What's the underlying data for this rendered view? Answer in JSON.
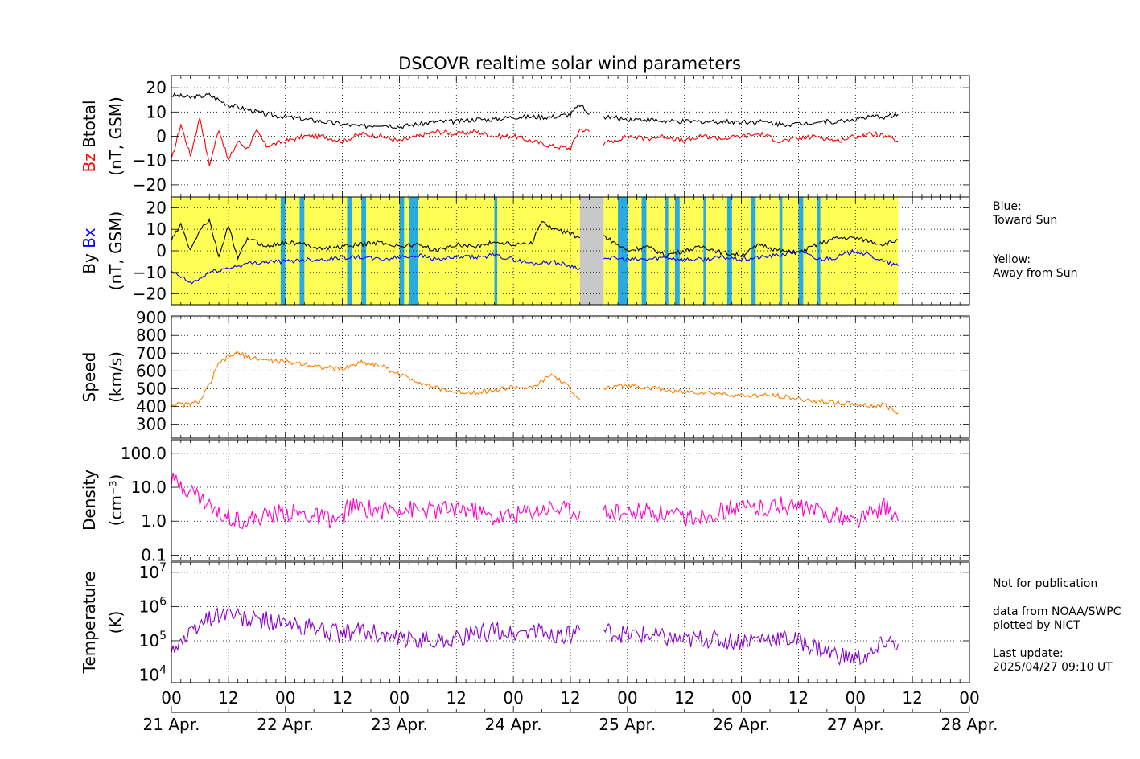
{
  "title": "DSCOVR realtime solar wind parameters",
  "colors": {
    "btotal": "#000000",
    "bz": "#ff0000",
    "by": "#000000",
    "bx": "#0000ff",
    "speed": "#ff8000",
    "density": "#ff00cc",
    "temperature": "#8800cc",
    "toward_sun": "#29abe2",
    "away_sun": "#ffff55",
    "gap": "#c8c8c8"
  },
  "legend": {
    "toward": [
      "Blue:",
      "Toward Sun"
    ],
    "away": [
      "Yellow:",
      "Away from Sun"
    ]
  },
  "notes": {
    "line1": "Not for publication",
    "line2": "data from NOAA/SWPC",
    "line3": "plotted by NICT",
    "line4": "Last update:",
    "line5": "2025/04/27 09:10 UT"
  },
  "chart_data": [
    {
      "type": "line",
      "panel": "magnetic",
      "ylabel_parts": [
        "Bz",
        "Btotal"
      ],
      "yunit": "(nT, GSM)",
      "ylim": [
        -25,
        25
      ],
      "yticks": [
        20,
        10,
        0,
        -10,
        -20
      ],
      "ytick_labels": [
        "20",
        "10",
        "0",
        "−10",
        "−20"
      ],
      "series": [
        {
          "name": "Btotal",
          "color_key": "btotal",
          "x": [
            0,
            4,
            8,
            12,
            16,
            20,
            24,
            28,
            32,
            36,
            40,
            44,
            48,
            52,
            56,
            60,
            64,
            68,
            72,
            76,
            80,
            84,
            86,
            88
          ],
          "y": [
            17,
            16,
            17,
            13,
            11,
            9,
            8,
            7,
            6,
            5,
            4,
            5,
            4,
            5,
            6,
            6,
            7,
            7,
            8,
            8,
            8,
            9,
            13,
            9
          ]
        },
        {
          "name": "Btotal",
          "color_key": "btotal",
          "x": [
            91,
            96,
            100,
            104,
            108,
            112,
            116,
            120,
            124,
            128,
            132,
            136,
            140,
            144,
            148,
            150,
            153
          ],
          "y": [
            8,
            7,
            7,
            6,
            6,
            6,
            6,
            6,
            6,
            5,
            5,
            6,
            6,
            7,
            8,
            8,
            9
          ]
        },
        {
          "name": "Bz",
          "color_key": "bz",
          "x": [
            0,
            2,
            4,
            6,
            8,
            10,
            12,
            14,
            16,
            18,
            20,
            24,
            28,
            32,
            36,
            40,
            44,
            48,
            52,
            56,
            60,
            64,
            68,
            72,
            76,
            80,
            84,
            86,
            88
          ],
          "y": [
            -10,
            5,
            -8,
            8,
            -12,
            3,
            -10,
            -2,
            -5,
            2,
            -4,
            -2,
            0,
            0,
            -2,
            1,
            0,
            -2,
            0,
            2,
            1,
            2,
            0,
            0,
            -2,
            -4,
            -5,
            3,
            2
          ]
        },
        {
          "name": "Bz",
          "color_key": "bz",
          "x": [
            91,
            96,
            100,
            104,
            108,
            112,
            116,
            120,
            124,
            128,
            132,
            136,
            140,
            144,
            148,
            150,
            153
          ],
          "y": [
            -3,
            0,
            -1,
            0,
            -2,
            0,
            -1,
            0,
            1,
            -2,
            -1,
            0,
            -2,
            0,
            1,
            0,
            -2
          ]
        }
      ]
    },
    {
      "type": "line",
      "panel": "imf",
      "ylabel_parts": [
        "By",
        "Bx"
      ],
      "yunit": "(nT, GSM)",
      "ylim": [
        -25,
        25
      ],
      "yticks": [
        20,
        10,
        0,
        -10,
        -20
      ],
      "ytick_labels": [
        "20",
        "10",
        "0",
        "−10",
        "−20"
      ],
      "sector_away": [
        [
          0,
          86
        ],
        [
          91,
          153
        ]
      ],
      "sector_toward": [
        [
          23,
          24
        ],
        [
          27,
          28
        ],
        [
          37,
          38
        ],
        [
          40,
          41
        ],
        [
          48,
          49
        ],
        [
          50,
          52
        ],
        [
          68,
          68.6
        ],
        [
          94,
          96
        ],
        [
          99,
          100
        ],
        [
          104,
          104.6
        ],
        [
          106,
          107
        ],
        [
          112,
          112.6
        ],
        [
          117,
          118
        ],
        [
          122,
          123
        ],
        [
          128,
          128.6
        ],
        [
          132,
          133
        ],
        [
          136,
          136.6
        ]
      ],
      "data_gap": [
        86,
        91
      ],
      "series": [
        {
          "name": "By",
          "color_key": "by",
          "x": [
            0,
            2,
            4,
            6,
            8,
            10,
            12,
            14,
            16,
            20,
            24,
            28,
            32,
            36,
            40,
            44,
            48,
            52,
            56,
            60,
            64,
            68,
            72,
            76,
            78,
            80,
            84,
            86
          ],
          "y": [
            5,
            12,
            0,
            10,
            14,
            -3,
            12,
            -4,
            6,
            2,
            4,
            3,
            1,
            2,
            3,
            4,
            2,
            3,
            0,
            3,
            2,
            4,
            3,
            4,
            14,
            10,
            8,
            6
          ]
        },
        {
          "name": "By",
          "color_key": "by",
          "x": [
            91,
            96,
            100,
            104,
            108,
            112,
            116,
            120,
            124,
            128,
            132,
            136,
            140,
            144,
            148,
            150,
            153
          ],
          "y": [
            7,
            0,
            2,
            -2,
            0,
            2,
            -1,
            -2,
            3,
            0,
            -1,
            3,
            6,
            6,
            4,
            3,
            5
          ]
        },
        {
          "name": "Bx",
          "color_key": "bx",
          "x": [
            0,
            2,
            4,
            6,
            8,
            12,
            16,
            20,
            24,
            28,
            32,
            36,
            40,
            44,
            48,
            52,
            56,
            60,
            64,
            68,
            72,
            76,
            80,
            84,
            86
          ],
          "y": [
            -10,
            -12,
            -15,
            -13,
            -10,
            -8,
            -6,
            -5,
            -5,
            -4,
            -4,
            -3,
            -3,
            -4,
            -3,
            -2,
            -4,
            -3,
            -3,
            -2,
            -4,
            -6,
            -5,
            -7,
            -8
          ]
        },
        {
          "name": "Bx",
          "color_key": "bx",
          "x": [
            91,
            96,
            100,
            104,
            108,
            112,
            116,
            120,
            124,
            128,
            132,
            136,
            140,
            144,
            148,
            150,
            153
          ],
          "y": [
            -3,
            -4,
            -4,
            -3,
            -4,
            -4,
            -3,
            -4,
            -3,
            -2,
            0,
            -4,
            -3,
            0,
            -3,
            -5,
            -7
          ]
        }
      ]
    },
    {
      "type": "line",
      "panel": "speed",
      "ylabel_parts": [
        "Speed"
      ],
      "yunit": "(km/s)",
      "ylim": [
        220,
        910
      ],
      "yticks": [
        900,
        800,
        700,
        600,
        500,
        400,
        300
      ],
      "ytick_labels": [
        "900",
        "800",
        "700",
        "600",
        "500",
        "400",
        "300"
      ],
      "series": [
        {
          "name": "Speed",
          "color_key": "speed",
          "x": [
            0,
            4,
            6,
            8,
            10,
            12,
            14,
            16,
            20,
            24,
            28,
            32,
            36,
            40,
            44,
            48,
            52,
            56,
            60,
            64,
            68,
            72,
            76,
            80,
            84,
            86
          ],
          "y": [
            410,
            410,
            430,
            520,
            640,
            680,
            700,
            680,
            660,
            650,
            640,
            620,
            610,
            650,
            630,
            580,
            540,
            500,
            480,
            480,
            490,
            510,
            500,
            580,
            500,
            440
          ]
        },
        {
          "name": "Speed",
          "color_key": "speed",
          "x": [
            91,
            96,
            100,
            104,
            108,
            112,
            116,
            120,
            124,
            128,
            132,
            136,
            140,
            144,
            148,
            150,
            153
          ],
          "y": [
            500,
            520,
            510,
            490,
            480,
            480,
            470,
            460,
            460,
            460,
            440,
            430,
            420,
            410,
            400,
            410,
            360
          ]
        }
      ]
    },
    {
      "type": "line",
      "panel": "density",
      "yscale": "log",
      "ylabel_parts": [
        "Density"
      ],
      "yunit": "(cm⁻³)",
      "ylim": [
        0.07,
        250
      ],
      "yticks": [
        100,
        10,
        1,
        0.1
      ],
      "ytick_labels": [
        "100.0",
        "10.0",
        "1.0",
        "0.1"
      ],
      "series": [
        {
          "name": "Density",
          "color_key": "density",
          "x": [
            0,
            2,
            4,
            6,
            8,
            10,
            12,
            14,
            16,
            20,
            24,
            28,
            32,
            36,
            37,
            40,
            44,
            48,
            52,
            56,
            60,
            64,
            68,
            72,
            76,
            80,
            84,
            86
          ],
          "y": [
            15,
            12,
            8,
            5,
            3,
            1.5,
            1.5,
            1.2,
            1.0,
            1.5,
            1.8,
            1.5,
            1.2,
            1.0,
            2.5,
            2.5,
            2.0,
            2.5,
            2.0,
            2.0,
            2.5,
            2.0,
            1.2,
            1.5,
            2.0,
            2.5,
            2.0,
            2.0
          ]
        },
        {
          "name": "Density",
          "color_key": "density",
          "x": [
            91,
            96,
            100,
            104,
            108,
            112,
            116,
            120,
            124,
            128,
            132,
            136,
            140,
            144,
            148,
            150,
            153
          ],
          "y": [
            2.0,
            1.5,
            2.0,
            1.5,
            1.2,
            1.5,
            2.0,
            2.5,
            2.5,
            3.0,
            2.5,
            2.0,
            1.5,
            1.0,
            2.0,
            3.0,
            1.0
          ]
        }
      ]
    },
    {
      "type": "line",
      "panel": "temperature",
      "yscale": "log",
      "ylabel_parts": [
        "Temperature"
      ],
      "yunit": "(K)",
      "ylim": [
        6000,
        20000000
      ],
      "yticks": [
        10000000,
        1000000,
        100000,
        10000
      ],
      "ytick_labels": [
        "10^7",
        "10^6",
        "10^5",
        "10^4"
      ],
      "series": [
        {
          "name": "Temperature",
          "color_key": "temperature",
          "x": [
            0,
            2,
            4,
            6,
            8,
            10,
            12,
            14,
            16,
            20,
            24,
            28,
            32,
            36,
            40,
            44,
            48,
            52,
            56,
            60,
            64,
            68,
            72,
            76,
            80,
            84,
            86
          ],
          "y": [
            60000,
            100000,
            150000,
            300000,
            500000,
            600000,
            700000,
            500000,
            400000,
            400000,
            300000,
            250000,
            200000,
            150000,
            200000,
            150000,
            100000,
            120000,
            100000,
            120000,
            150000,
            200000,
            150000,
            200000,
            150000,
            150000,
            200000
          ]
        },
        {
          "name": "Temperature",
          "color_key": "temperature",
          "x": [
            91,
            96,
            100,
            104,
            108,
            112,
            116,
            120,
            124,
            128,
            132,
            136,
            140,
            144,
            148,
            150,
            153
          ],
          "y": [
            200000,
            150000,
            150000,
            120000,
            100000,
            120000,
            100000,
            100000,
            120000,
            120000,
            100000,
            60000,
            40000,
            30000,
            40000,
            100000,
            80000
          ]
        }
      ]
    }
  ],
  "x_axis": {
    "range_hours": [
      0,
      168
    ],
    "hour_ticks": [
      0,
      12,
      24,
      36,
      48,
      60,
      72,
      84,
      96,
      108,
      120,
      132,
      144,
      156,
      168
    ],
    "hour_labels": [
      "00",
      "12",
      "00",
      "12",
      "00",
      "12",
      "00",
      "12",
      "00",
      "12",
      "00",
      "12",
      "00",
      "12",
      "00"
    ],
    "day_ticks": [
      0,
      24,
      48,
      72,
      96,
      120,
      144,
      168
    ],
    "day_labels": [
      "21 Apr.",
      "22 Apr.",
      "23 Apr.",
      "24 Apr.",
      "25 Apr.",
      "26 Apr.",
      "27 Apr.",
      "28 Apr."
    ]
  }
}
